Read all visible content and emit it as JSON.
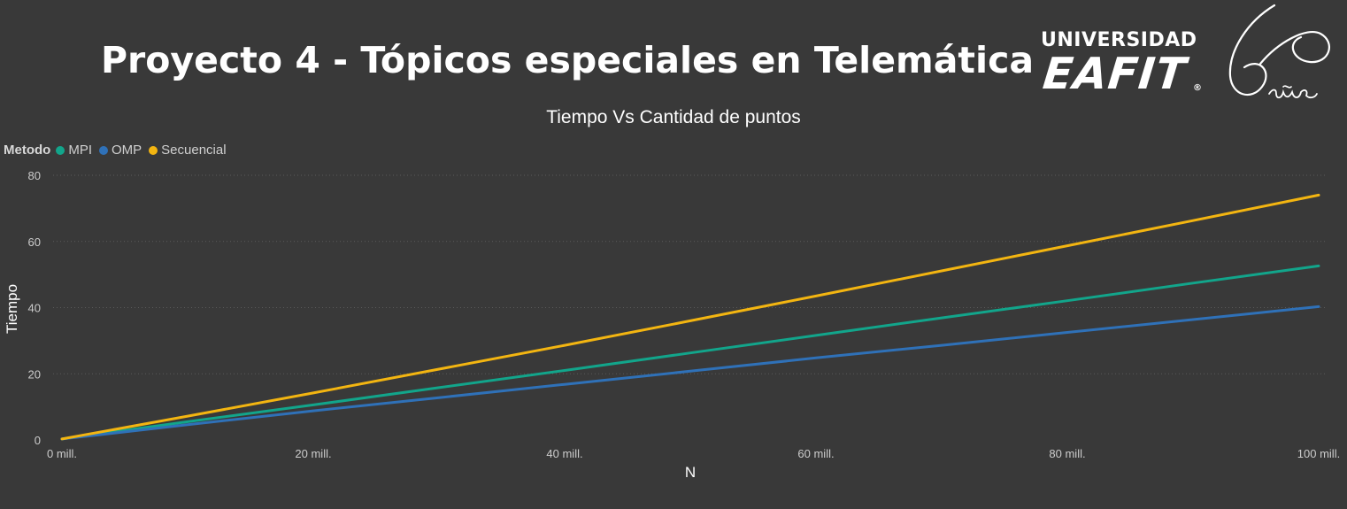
{
  "header": {
    "title": "Proyecto 4 - Tópicos especiales en Telemática",
    "logo_line1": "UNIVERSIDAD",
    "logo_line2": "EAFIT",
    "logo_reg": "®",
    "logo_sixty_text": "60 años"
  },
  "colors": {
    "background": "#393939",
    "gridline": "#5a5a5a",
    "MPI": "#12A58B",
    "OMP": "#2F71B8",
    "Secuencial": "#F3B511"
  },
  "chart_data": {
    "type": "line",
    "title": "Tiempo Vs Cantidad de puntos",
    "xlabel": "N",
    "ylabel": "Tiempo",
    "legend_title": "Metodo",
    "legend_placement": "top-left",
    "grid": true,
    "xlim": [
      0,
      100000000
    ],
    "ylim": [
      0,
      80
    ],
    "x_ticks": [
      {
        "value": 0,
        "label": "0 mill."
      },
      {
        "value": 20000000,
        "label": "20 mill."
      },
      {
        "value": 40000000,
        "label": "40 mill."
      },
      {
        "value": 60000000,
        "label": "60 mill."
      },
      {
        "value": 80000000,
        "label": "80 mill."
      },
      {
        "value": 100000000,
        "label": "100 mill."
      }
    ],
    "y_ticks": [
      0,
      20,
      40,
      60,
      80
    ],
    "x": [
      0,
      10000000,
      20000000,
      30000000,
      40000000,
      50000000,
      60000000,
      70000000,
      80000000,
      90000000,
      100000000
    ],
    "series": [
      {
        "name": "MPI",
        "color": "#12A58B",
        "values": [
          0.3,
          5.5,
          10.6,
          15.8,
          21.0,
          26.3,
          31.6,
          36.9,
          42.1,
          47.4,
          52.6
        ]
      },
      {
        "name": "OMP",
        "color": "#2F71B8",
        "values": [
          0.3,
          4.6,
          8.8,
          12.8,
          16.8,
          20.8,
          24.8,
          28.6,
          32.5,
          36.4,
          40.3
        ]
      },
      {
        "name": "Secuencial",
        "color": "#F3B511",
        "values": [
          0.3,
          7.2,
          14.2,
          21.4,
          28.6,
          36.0,
          43.5,
          51.1,
          58.7,
          66.3,
          74.0
        ]
      }
    ]
  }
}
